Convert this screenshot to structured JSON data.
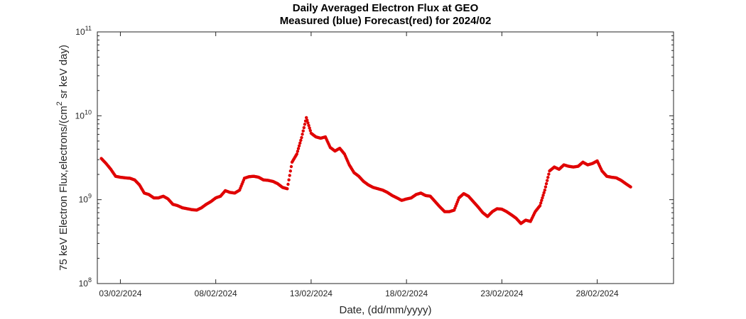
{
  "chart_data": {
    "type": "scatter",
    "title": "Daily Averaged Electron Flux at GEO",
    "subtitle": "Measured (blue) Forecast(red) for 2024/02",
    "xlabel": "Date, (dd/mm/yyyy)",
    "ylabel_parts": [
      "75 keV Electron Flux,electrons/(cm",
      "2",
      " sr keV day)"
    ],
    "yscale": "log",
    "ylim": [
      100000000,
      100000000000
    ],
    "xlim": [
      "01/02/2024 19:00",
      "03/03/2024 00:00"
    ],
    "grid": false,
    "point_color": "#e00000",
    "x_tick_labels": [
      "03/02/2024",
      "08/02/2024",
      "13/02/2024",
      "18/02/2024",
      "23/02/2024",
      "28/02/2024"
    ],
    "y_ticks": [
      {
        "base": "10",
        "exp": "8"
      },
      {
        "base": "10",
        "exp": "9"
      },
      {
        "base": "10",
        "exp": "10"
      },
      {
        "base": "10",
        "exp": "11"
      }
    ],
    "series": [
      {
        "points": [
          [
            "02/02/2024 00:00",
            3100000000.0
          ],
          [
            "02/02/2024 06:00",
            2700000000.0
          ],
          [
            "02/02/2024 12:00",
            2300000000.0
          ],
          [
            "02/02/2024 18:00",
            1900000000.0
          ],
          [
            "03/02/2024 00:00",
            1850000000.0
          ],
          [
            "03/02/2024 06:00",
            1820000000.0
          ],
          [
            "03/02/2024 12:00",
            1800000000.0
          ],
          [
            "03/02/2024 18:00",
            1720000000.0
          ],
          [
            "04/02/2024 00:00",
            1500000000.0
          ],
          [
            "04/02/2024 06:00",
            1200000000.0
          ],
          [
            "04/02/2024 12:00",
            1150000000.0
          ],
          [
            "04/02/2024 18:00",
            1050000000.0
          ],
          [
            "05/02/2024 00:00",
            1050000000.0
          ],
          [
            "05/02/2024 06:00",
            1100000000.0
          ],
          [
            "05/02/2024 12:00",
            1020000000.0
          ],
          [
            "05/02/2024 18:00",
            880000000.0
          ],
          [
            "06/02/2024 00:00",
            850000000.0
          ],
          [
            "06/02/2024 06:00",
            800000000.0
          ],
          [
            "06/02/2024 12:00",
            780000000.0
          ],
          [
            "06/02/2024 18:00",
            760000000.0
          ],
          [
            "07/02/2024 00:00",
            750000000.0
          ],
          [
            "07/02/2024 06:00",
            800000000.0
          ],
          [
            "07/02/2024 12:00",
            880000000.0
          ],
          [
            "07/02/2024 18:00",
            950000000.0
          ],
          [
            "08/02/2024 00:00",
            1050000000.0
          ],
          [
            "08/02/2024 06:00",
            1100000000.0
          ],
          [
            "08/02/2024 12:00",
            1280000000.0
          ],
          [
            "08/02/2024 18:00",
            1220000000.0
          ],
          [
            "09/02/2024 00:00",
            1200000000.0
          ],
          [
            "09/02/2024 06:00",
            1300000000.0
          ],
          [
            "09/02/2024 12:00",
            1800000000.0
          ],
          [
            "09/02/2024 18:00",
            1880000000.0
          ],
          [
            "10/02/2024 00:00",
            1900000000.0
          ],
          [
            "10/02/2024 06:00",
            1850000000.0
          ],
          [
            "10/02/2024 12:00",
            1720000000.0
          ],
          [
            "10/02/2024 18:00",
            1700000000.0
          ],
          [
            "11/02/2024 00:00",
            1650000000.0
          ],
          [
            "11/02/2024 06:00",
            1550000000.0
          ],
          [
            "11/02/2024 12:00",
            1400000000.0
          ],
          [
            "11/02/2024 18:00",
            1350000000.0
          ],
          [
            "12/02/2024 00:00",
            2800000000.0
          ],
          [
            "12/02/2024 06:00",
            3500000000.0
          ],
          [
            "12/02/2024 12:00",
            5500000000.0
          ],
          [
            "12/02/2024 18:00",
            9500000000.0
          ],
          [
            "13/02/2024 00:00",
            6200000000.0
          ],
          [
            "13/02/2024 06:00",
            5600000000.0
          ],
          [
            "13/02/2024 12:00",
            5400000000.0
          ],
          [
            "13/02/2024 18:00",
            5600000000.0
          ],
          [
            "14/02/2024 00:00",
            4200000000.0
          ],
          [
            "14/02/2024 06:00",
            3800000000.0
          ],
          [
            "14/02/2024 12:00",
            4100000000.0
          ],
          [
            "14/02/2024 18:00",
            3500000000.0
          ],
          [
            "15/02/2024 00:00",
            2600000000.0
          ],
          [
            "15/02/2024 06:00",
            2100000000.0
          ],
          [
            "15/02/2024 12:00",
            1900000000.0
          ],
          [
            "15/02/2024 18:00",
            1650000000.0
          ],
          [
            "16/02/2024 00:00",
            1500000000.0
          ],
          [
            "16/02/2024 06:00",
            1400000000.0
          ],
          [
            "16/02/2024 12:00",
            1350000000.0
          ],
          [
            "16/02/2024 18:00",
            1300000000.0
          ],
          [
            "17/02/2024 00:00",
            1220000000.0
          ],
          [
            "17/02/2024 06:00",
            1120000000.0
          ],
          [
            "17/02/2024 12:00",
            1050000000.0
          ],
          [
            "17/02/2024 18:00",
            980000000.0
          ],
          [
            "18/02/2024 00:00",
            1020000000.0
          ],
          [
            "18/02/2024 06:00",
            1050000000.0
          ],
          [
            "18/02/2024 12:00",
            1150000000.0
          ],
          [
            "18/02/2024 18:00",
            1200000000.0
          ],
          [
            "19/02/2024 00:00",
            1120000000.0
          ],
          [
            "19/02/2024 06:00",
            1100000000.0
          ],
          [
            "19/02/2024 12:00",
            950000000.0
          ],
          [
            "19/02/2024 18:00",
            820000000.0
          ],
          [
            "20/02/2024 00:00",
            720000000.0
          ],
          [
            "20/02/2024 06:00",
            720000000.0
          ],
          [
            "20/02/2024 12:00",
            750000000.0
          ],
          [
            "20/02/2024 18:00",
            1050000000.0
          ],
          [
            "21/02/2024 00:00",
            1180000000.0
          ],
          [
            "21/02/2024 06:00",
            1100000000.0
          ],
          [
            "21/02/2024 12:00",
            950000000.0
          ],
          [
            "21/02/2024 18:00",
            820000000.0
          ],
          [
            "22/02/2024 00:00",
            700000000.0
          ],
          [
            "22/02/2024 06:00",
            630000000.0
          ],
          [
            "22/02/2024 12:00",
            720000000.0
          ],
          [
            "22/02/2024 18:00",
            780000000.0
          ],
          [
            "23/02/2024 00:00",
            770000000.0
          ],
          [
            "23/02/2024 06:00",
            720000000.0
          ],
          [
            "23/02/2024 12:00",
            660000000.0
          ],
          [
            "23/02/2024 18:00",
            600000000.0
          ],
          [
            "24/02/2024 00:00",
            520000000.0
          ],
          [
            "24/02/2024 06:00",
            570000000.0
          ],
          [
            "24/02/2024 12:00",
            550000000.0
          ],
          [
            "24/02/2024 18:00",
            720000000.0
          ],
          [
            "25/02/2024 00:00",
            850000000.0
          ],
          [
            "25/02/2024 06:00",
            1300000000.0
          ],
          [
            "25/02/2024 12:00",
            2200000000.0
          ],
          [
            "25/02/2024 18:00",
            2450000000.0
          ],
          [
            "26/02/2024 00:00",
            2300000000.0
          ],
          [
            "26/02/2024 06:00",
            2600000000.0
          ],
          [
            "26/02/2024 12:00",
            2500000000.0
          ],
          [
            "26/02/2024 18:00",
            2450000000.0
          ],
          [
            "27/02/2024 00:00",
            2500000000.0
          ],
          [
            "27/02/2024 06:00",
            2800000000.0
          ],
          [
            "27/02/2024 12:00",
            2600000000.0
          ],
          [
            "27/02/2024 18:00",
            2700000000.0
          ],
          [
            "28/02/2024 00:00",
            2900000000.0
          ],
          [
            "28/02/2024 06:00",
            2200000000.0
          ],
          [
            "28/02/2024 12:00",
            1900000000.0
          ],
          [
            "28/02/2024 18:00",
            1850000000.0
          ],
          [
            "29/02/2024 00:00",
            1820000000.0
          ],
          [
            "29/02/2024 06:00",
            1700000000.0
          ],
          [
            "29/02/2024 12:00",
            1550000000.0
          ],
          [
            "29/02/2024 18:00",
            1420000000.0
          ]
        ]
      }
    ]
  }
}
